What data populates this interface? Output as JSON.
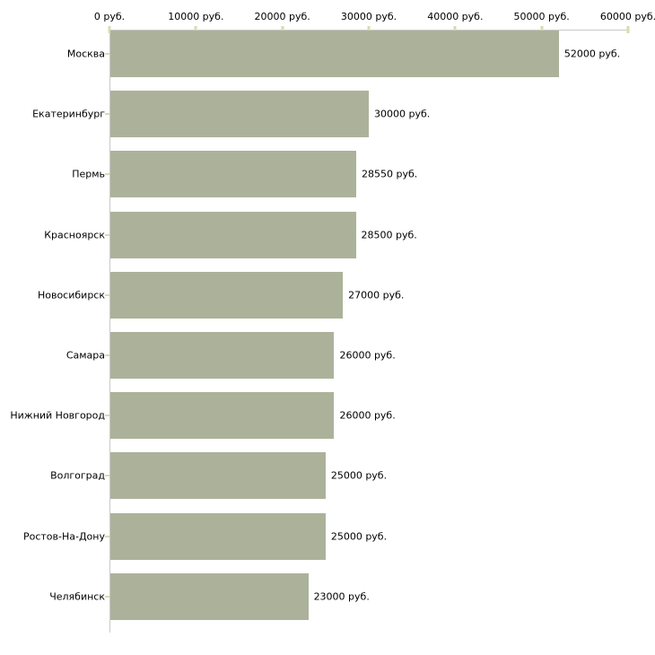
{
  "chart_data": {
    "type": "bar",
    "orientation": "horizontal",
    "title": "",
    "xlabel": "",
    "ylabel": "",
    "unit": "руб.",
    "categories": [
      "Москва",
      "Екатеринбург",
      "Пермь",
      "Красноярск",
      "Новосибирск",
      "Самара",
      "Нижний Новгород",
      "Волгоград",
      "Ростов-На-Дону",
      "Челябинск"
    ],
    "values": [
      52000,
      30000,
      28550,
      28500,
      27000,
      26000,
      26000,
      25000,
      25000,
      23000
    ],
    "value_labels": [
      "52000 руб.",
      "30000 руб.",
      "28550 руб.",
      "28500 руб.",
      "27000 руб.",
      "26000 руб.",
      "26000 руб.",
      "25000 руб.",
      "25000 руб.",
      "23000 руб."
    ],
    "x_ticks": [
      0,
      10000,
      20000,
      30000,
      40000,
      50000,
      60000
    ],
    "x_tick_labels": [
      "0 руб.",
      "10000 руб.",
      "20000 руб.",
      "30000 руб.",
      "40000 руб.",
      "50000 руб.",
      "60000 руб."
    ],
    "xlim": [
      0,
      60000
    ],
    "grid": false,
    "legend": false,
    "data_labels": true,
    "colors": {
      "bar": "#acb29a",
      "axis_line": "#c9c9c9",
      "tick_mark": "#d8dbb2",
      "text": "#000000",
      "background": "#ffffff"
    }
  }
}
